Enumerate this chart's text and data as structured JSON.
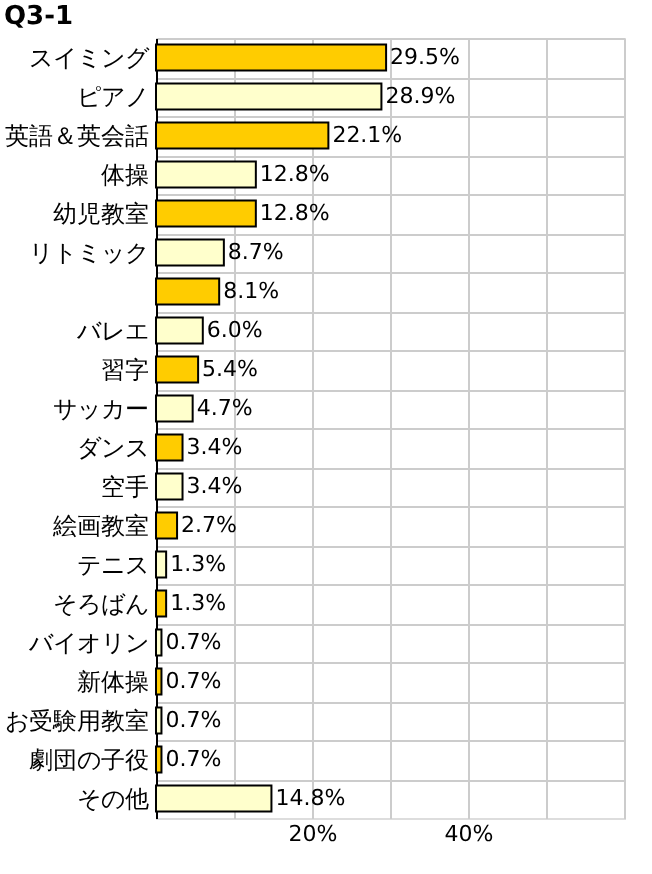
{
  "chart_data": {
    "type": "bar",
    "orientation": "horizontal",
    "title": "Q3-1",
    "categories": [
      "スイミング",
      "ピアノ",
      "英語＆英会話",
      "体操",
      "幼児教室",
      "リトミック",
      null,
      "バレエ",
      "習字",
      "サッカー",
      "ダンス",
      "空手",
      "絵画教室",
      "テニス",
      "そろばん",
      "バイオリン",
      "新体操",
      "お受験用教室",
      "劇団の子役",
      "その他"
    ],
    "values": [
      29.5,
      28.9,
      22.1,
      12.8,
      12.8,
      8.7,
      8.1,
      6.0,
      5.4,
      4.7,
      3.4,
      3.4,
      2.7,
      1.3,
      1.3,
      0.7,
      0.7,
      0.7,
      0.7,
      14.8
    ],
    "value_labels": [
      "29.5%",
      "28.9%",
      "22.1%",
      "12.8%",
      "12.8%",
      "8.7%",
      "8.1%",
      "6.0%",
      "5.4%",
      "4.7%",
      "3.4%",
      "3.4%",
      "2.7%",
      "1.3%",
      "1.3%",
      "0.7%",
      "0.7%",
      "0.7%",
      "0.7%",
      "14.8%"
    ],
    "colors": [
      "#ffcc00",
      "#ffffcc",
      "#ffcc00",
      "#ffffcc",
      "#ffcc00",
      "#ffffcc",
      "#ffcc00",
      "#ffffcc",
      "#ffcc00",
      "#ffffcc",
      "#ffcc00",
      "#ffffcc",
      "#ffcc00",
      "#ffffcc",
      "#ffcc00",
      "#ffffcc",
      "#ffcc00",
      "#ffffcc",
      "#ffcc00",
      "#ffffcc"
    ],
    "xlim": [
      0,
      60
    ],
    "xticks": [
      {
        "value": 0,
        "label": null
      },
      {
        "value": 10,
        "label": null
      },
      {
        "value": 20,
        "label": "20%"
      },
      {
        "value": 30,
        "label": null
      },
      {
        "value": 40,
        "label": "40%"
      },
      {
        "value": 50,
        "label": null
      },
      {
        "value": 60,
        "label": null
      }
    ],
    "grid": true
  }
}
